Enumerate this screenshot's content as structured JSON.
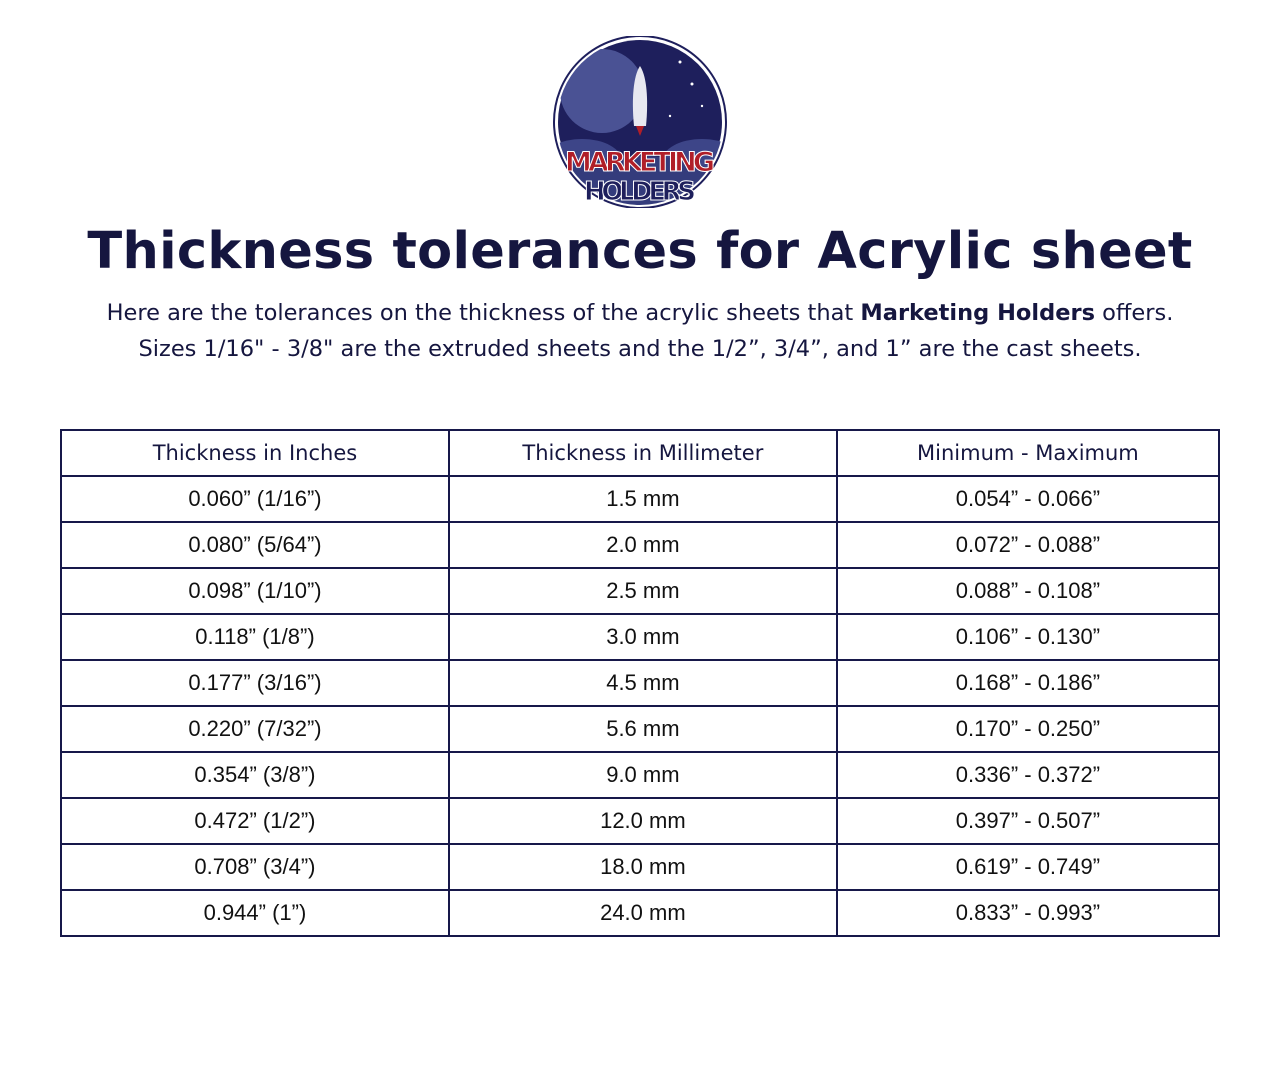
{
  "logo": {
    "line1": "MARKETING",
    "line2": "HOLDERS",
    "colors": {
      "navy": "#1e1f5c",
      "red": "#b01e28",
      "moon": "#4a5294"
    }
  },
  "title": "Thickness tolerances for Acrylic sheet",
  "subtitle": {
    "line1_pre": "Here are the tolerances on the thickness of the acrylic sheets that ",
    "line1_bold": "Marketing Holders",
    "line1_post": " offers.",
    "line2": "Sizes 1/16\" - 3/8\" are the extruded sheets and the 1/2”, 3/4”, and 1” are the cast sheets."
  },
  "table": {
    "headers": [
      "Thickness in Inches",
      "Thickness in Millimeter",
      "Minimum - Maximum"
    ],
    "rows": [
      [
        "0.060” (1/16”)",
        "1.5 mm",
        "0.054” - 0.066”"
      ],
      [
        "0.080” (5/64”)",
        "2.0 mm",
        "0.072” - 0.088”"
      ],
      [
        "0.098” (1/10”)",
        "2.5 mm",
        "0.088” - 0.108”"
      ],
      [
        "0.118” (1/8”)",
        "3.0 mm",
        "0.106” - 0.130”"
      ],
      [
        "0.177” (3/16”)",
        "4.5 mm",
        "0.168” - 0.186”"
      ],
      [
        "0.220” (7/32”)",
        "5.6 mm",
        "0.170” - 0.250”"
      ],
      [
        "0.354” (3/8”)",
        "9.0 mm",
        "0.336” - 0.372”"
      ],
      [
        "0.472” (1/2”)",
        "12.0 mm",
        "0.397” - 0.507”"
      ],
      [
        "0.708” (3/4”)",
        "18.0 mm",
        "0.619” - 0.749”"
      ],
      [
        "0.944” (1”)",
        "24.0 mm",
        "0.833” - 0.993”"
      ]
    ]
  }
}
